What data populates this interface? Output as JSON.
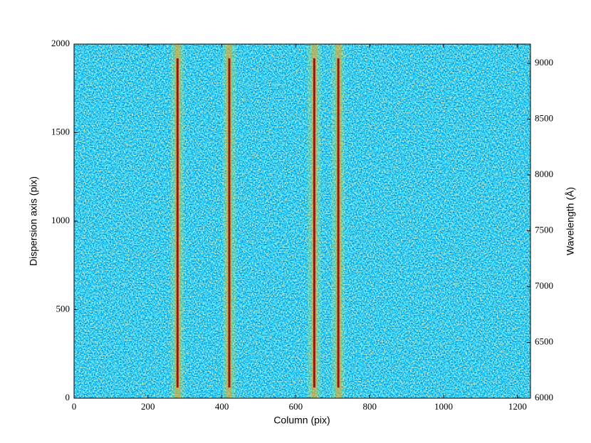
{
  "chart_data": {
    "type": "image",
    "xlabel": "Column (pix)",
    "ylabel": "Dispersion axis (pix)",
    "y2label": "Wavelength (Å)",
    "xlim": [
      0,
      1235
    ],
    "xticks": [
      0,
      200,
      400,
      600,
      800,
      1000,
      1200
    ],
    "ylim": [
      0,
      2000
    ],
    "yticks": [
      0,
      500,
      1000,
      1500,
      2000
    ],
    "y2lim": [
      6000,
      9172
    ],
    "y2ticks": [
      6000,
      6500,
      7000,
      7500,
      8000,
      8500,
      9000
    ],
    "traces": {
      "x": [
        280,
        420,
        650,
        715
      ],
      "color": "#8b0000"
    }
  }
}
